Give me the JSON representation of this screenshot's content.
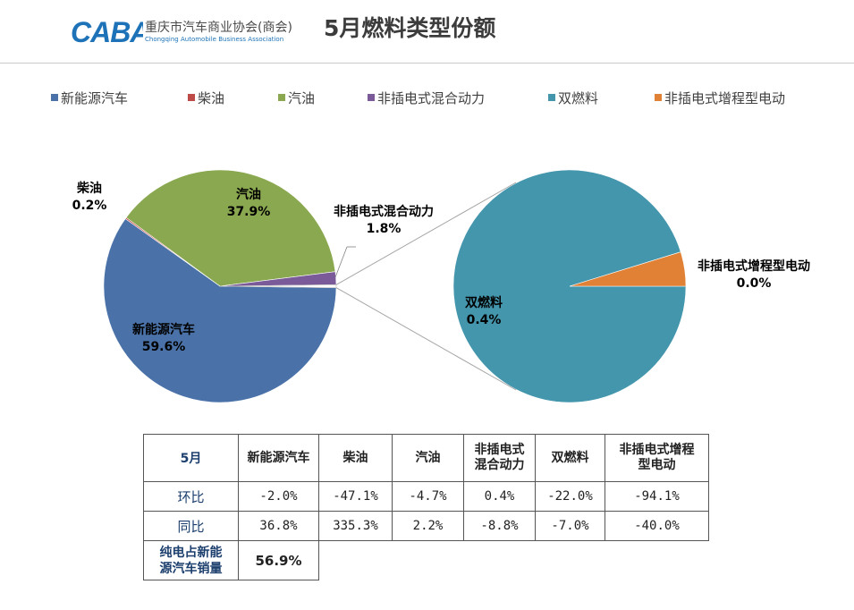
{
  "header": {
    "logo_mark": "CABA",
    "logo_cn": "重庆市汽车商业协会(商会)",
    "logo_en": "Chongqing Automobile Business Association",
    "title": "5月燃料类型份额"
  },
  "colors": {
    "nev": "#4a72a8",
    "diesel": "#be4b48",
    "gasoline": "#8aa84f",
    "phev": "#7b5a9a",
    "dual_fuel": "#4496ad",
    "erev": "#e08136",
    "connector": "#a6a6a6"
  },
  "chart_data": {
    "type": "pie",
    "subtype": "pie-of-pie",
    "legend_position": "top",
    "main_pie": {
      "slices": [
        {
          "label": "新能源汽车",
          "value": 59.6,
          "value_text": "59.6%",
          "color": "#4a72a8"
        },
        {
          "label": "柴油",
          "value": 0.2,
          "value_text": "0.2%",
          "color": "#be4b48"
        },
        {
          "label": "汽油",
          "value": 37.9,
          "value_text": "37.9%",
          "color": "#8aa84f"
        },
        {
          "label": "非插电式混合动力",
          "value": 1.8,
          "value_text": "1.8%",
          "color": "#7b5a9a"
        }
      ],
      "other_slice_value": 0.4
    },
    "secondary_pie": {
      "slices": [
        {
          "label": "双燃料",
          "value": 0.4,
          "value_text": "0.4%",
          "color": "#4496ad"
        },
        {
          "label": "非插电式增程型电动",
          "value": 0.02,
          "value_text": "0.0%",
          "color": "#e08136"
        }
      ]
    },
    "legend": [
      {
        "label": "新能源汽车",
        "color": "#4a72a8"
      },
      {
        "label": "柴油",
        "color": "#be4b48"
      },
      {
        "label": "汽油",
        "color": "#8aa84f"
      },
      {
        "label": "非插电式混合动力",
        "color": "#7b5a9a"
      },
      {
        "label": "双燃料",
        "color": "#4496ad"
      },
      {
        "label": "非插电式增程型电动",
        "color": "#e08136"
      }
    ]
  },
  "table": {
    "corner": "5月",
    "columns": [
      "新能源汽车",
      "柴油",
      "汽油",
      "非插电式混合动力",
      "双燃料",
      "非插电式增程型电动"
    ],
    "column_lines": [
      [
        "新能源汽车"
      ],
      [
        "柴油"
      ],
      [
        "汽油"
      ],
      [
        "非插电式",
        "混合动力"
      ],
      [
        "双燃料"
      ],
      [
        "非插电式增程",
        "型电动"
      ]
    ],
    "rows": [
      {
        "label": "环比",
        "values": [
          "-2.0%",
          "-47.1%",
          "-4.7%",
          "0.4%",
          "-22.0%",
          "-94.1%"
        ]
      },
      {
        "label": "同比",
        "values": [
          "36.8%",
          "335.3%",
          "2.2%",
          "-8.8%",
          "-7.0%",
          "-40.0%"
        ]
      }
    ],
    "ev_share": {
      "label_lines": [
        "纯电占新能",
        "源汽车销量"
      ],
      "value": "56.9%"
    }
  }
}
